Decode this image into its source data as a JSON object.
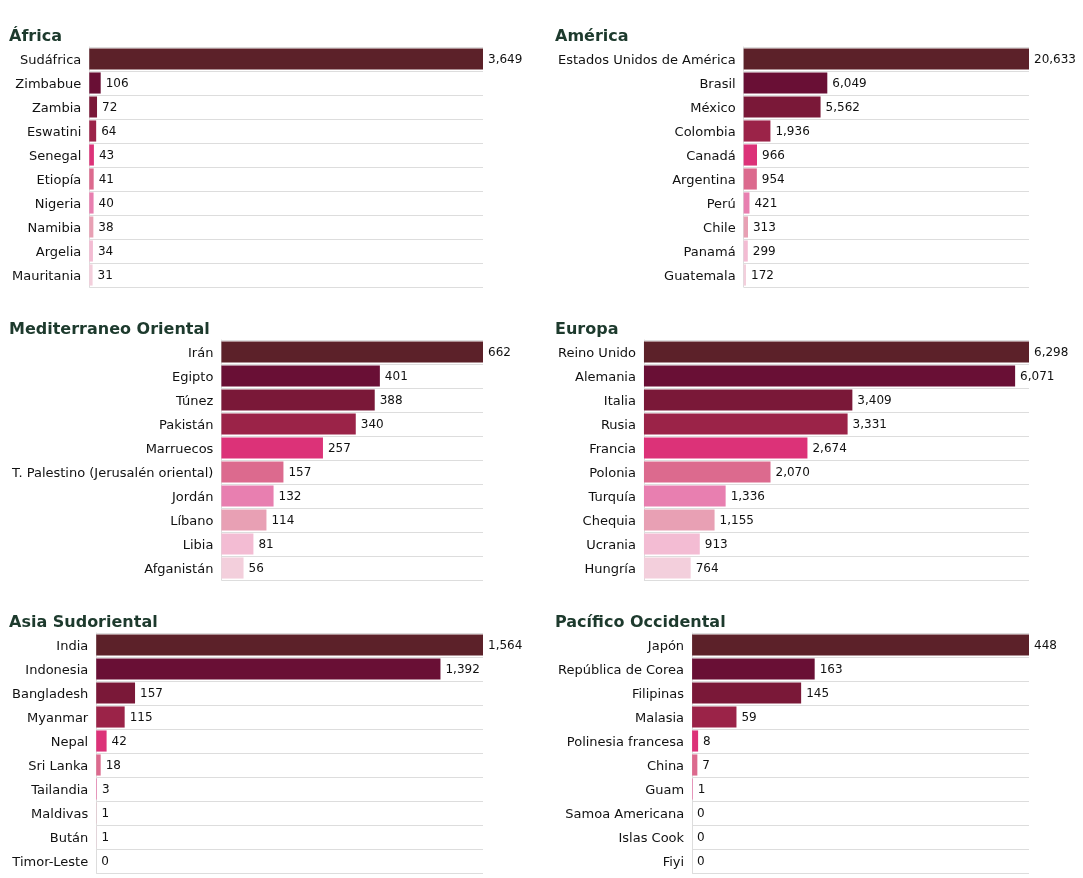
{
  "chart_data": [
    {
      "type": "bar",
      "orientation": "horizontal",
      "title": "África",
      "categories": [
        "Sudáfrica",
        "Zimbabue",
        "Zambia",
        "Eswatini",
        "Senegal",
        "Etiopía",
        "Nigeria",
        "Namibia",
        "Argelia",
        "Mauritania"
      ],
      "values": [
        3649,
        106,
        72,
        64,
        43,
        41,
        40,
        38,
        34,
        31
      ],
      "value_labels": [
        "3,649",
        "106",
        "72",
        "64",
        "43",
        "41",
        "40",
        "38",
        "34",
        "31"
      ],
      "colors": [
        "#5c2129",
        "#690f35",
        "#7a1838",
        "#9b2348",
        "#dc3278",
        "#dc6a8e",
        "#e87fb0",
        "#e8a0b4",
        "#f3bcd3",
        "#f3cfdc"
      ],
      "grid": "y"
    },
    {
      "type": "bar",
      "orientation": "horizontal",
      "title": "América",
      "categories": [
        "Estados Unidos de América",
        "Brasil",
        "México",
        "Colombia",
        "Canadá",
        "Argentina",
        "Perú",
        "Chile",
        "Panamá",
        "Guatemala"
      ],
      "values": [
        20633,
        6049,
        5562,
        1936,
        966,
        954,
        421,
        313,
        299,
        172
      ],
      "value_labels": [
        "20,633",
        "6,049",
        "5,562",
        "1,936",
        "966",
        "954",
        "421",
        "313",
        "299",
        "172"
      ],
      "colors": [
        "#5c2129",
        "#690f35",
        "#7a1838",
        "#9b2348",
        "#dc3278",
        "#dc6a8e",
        "#e87fb0",
        "#e8a0b4",
        "#f3bcd3",
        "#f3cfdc"
      ],
      "grid": "y"
    },
    {
      "type": "bar",
      "orientation": "horizontal",
      "title": "Mediterraneo Oriental",
      "categories": [
        "Irán",
        "Egipto",
        "Túnez",
        "Pakistán",
        "Marruecos",
        "T. Palestino (Jerusalén oriental)",
        "Jordán",
        "Líbano",
        "Libia",
        "Afganistán"
      ],
      "values": [
        662,
        401,
        388,
        340,
        257,
        157,
        132,
        114,
        81,
        56
      ],
      "value_labels": [
        "662",
        "401",
        "388",
        "340",
        "257",
        "157",
        "132",
        "114",
        "81",
        "56"
      ],
      "colors": [
        "#5c2129",
        "#690f35",
        "#7a1838",
        "#9b2348",
        "#dc3278",
        "#dc6a8e",
        "#e87fb0",
        "#e8a0b4",
        "#f3bcd3",
        "#f3cfdc"
      ],
      "grid": "y"
    },
    {
      "type": "bar",
      "orientation": "horizontal",
      "title": "Europa",
      "categories": [
        "Reino Unido",
        "Alemania",
        "Italia",
        "Rusia",
        "Francia",
        "Polonia",
        "Turquía",
        "Chequia",
        "Ucrania",
        "Hungría"
      ],
      "values": [
        6298,
        6071,
        3409,
        3331,
        2674,
        2070,
        1336,
        1155,
        913,
        764
      ],
      "value_labels": [
        "6,298",
        "6,071",
        "3,409",
        "3,331",
        "2,674",
        "2,070",
        "1,336",
        "1,155",
        "913",
        "764"
      ],
      "colors": [
        "#5c2129",
        "#690f35",
        "#7a1838",
        "#9b2348",
        "#dc3278",
        "#dc6a8e",
        "#e87fb0",
        "#e8a0b4",
        "#f3bcd3",
        "#f3cfdc"
      ],
      "grid": "y"
    },
    {
      "type": "bar",
      "orientation": "horizontal",
      "title": "Asia Sudoriental",
      "categories": [
        "India",
        "Indonesia",
        "Bangladesh",
        "Myanmar",
        "Nepal",
        "Sri Lanka",
        "Tailandia",
        "Maldivas",
        "Bután",
        "Timor-Leste"
      ],
      "values": [
        1564,
        1392,
        157,
        115,
        42,
        18,
        3,
        1,
        1,
        0
      ],
      "value_labels": [
        "1,564",
        "1,392",
        "157",
        "115",
        "42",
        "18",
        "3",
        "1",
        "1",
        "0"
      ],
      "colors": [
        "#5c2129",
        "#690f35",
        "#7a1838",
        "#9b2348",
        "#dc3278",
        "#dc6a8e",
        "#e87fb0",
        "#e8a0b4",
        "#f3bcd3",
        "#f3cfdc"
      ],
      "grid": "y"
    },
    {
      "type": "bar",
      "orientation": "horizontal",
      "title": "Pacífico Occidental",
      "categories": [
        "Japón",
        "República de Corea",
        "Filipinas",
        "Malasia",
        "Polinesia francesa",
        "China",
        "Guam",
        "Samoa Americana",
        "Islas Cook",
        "Fiyi"
      ],
      "values": [
        448,
        163,
        145,
        59,
        8,
        7,
        1,
        0,
        0,
        0
      ],
      "value_labels": [
        "448",
        "163",
        "145",
        "59",
        "8",
        "7",
        "1",
        "0",
        "0",
        "0"
      ],
      "colors": [
        "#5c2129",
        "#690f35",
        "#7a1838",
        "#9b2348",
        "#dc3278",
        "#dc6a8e",
        "#e87fb0",
        "#e8a0b4",
        "#f3bcd3",
        "#f3cfdc"
      ],
      "grid": "y"
    }
  ]
}
